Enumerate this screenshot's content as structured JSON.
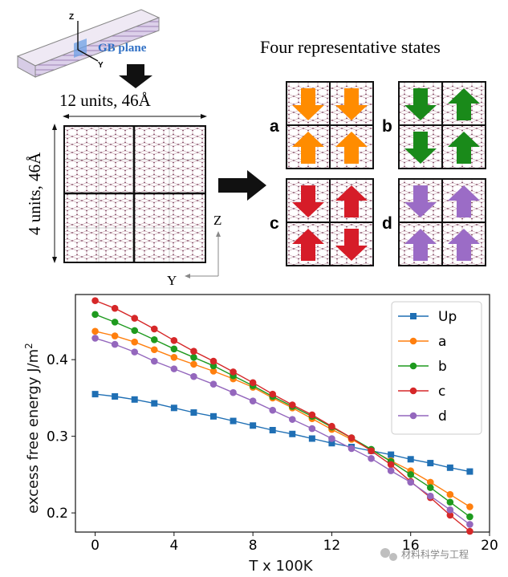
{
  "schematic": {
    "axis_z": "Z",
    "axis_y": "Y",
    "gb_plane_label": "GB plane",
    "width_label": "12 units, 46Å",
    "height_label": "4 units, 46Å",
    "cell_axis_z": "Z",
    "cell_axis_y": "Y",
    "states_title": "Four representative states",
    "states": [
      {
        "label": "a",
        "color": "#ff8c00",
        "arrows": [
          "down",
          "down",
          "up",
          "up"
        ]
      },
      {
        "label": "b",
        "color": "#1a8a1a",
        "arrows": [
          "down",
          "up",
          "down",
          "up"
        ]
      },
      {
        "label": "c",
        "color": "#d61c28",
        "arrows": [
          "down",
          "up",
          "up",
          "down"
        ]
      },
      {
        "label": "d",
        "color": "#9b6cc6",
        "arrows": [
          "down",
          "up",
          "up",
          "up"
        ]
      }
    ]
  },
  "chart_data": {
    "type": "line",
    "xlabel": "T x 100K",
    "ylabel_prefix": "excess free energy J/m",
    "ylabel_sup": "2",
    "xlim": [
      -1,
      20
    ],
    "ylim": [
      0.175,
      0.485
    ],
    "xticks": [
      0,
      4,
      8,
      12,
      16,
      20
    ],
    "yticks": [
      0.2,
      0.3,
      0.4
    ],
    "legend_position": "top-right",
    "series": [
      {
        "name": "Up",
        "color": "#1f6fb4",
        "marker": "square",
        "x": [
          0,
          1,
          2,
          3,
          4,
          5,
          6,
          7,
          8,
          9,
          10,
          11,
          12,
          13,
          14,
          15,
          16,
          17,
          18,
          19
        ],
        "values": [
          0.355,
          0.352,
          0.348,
          0.343,
          0.337,
          0.331,
          0.326,
          0.32,
          0.314,
          0.308,
          0.303,
          0.297,
          0.291,
          0.286,
          0.281,
          0.276,
          0.27,
          0.265,
          0.259,
          0.254
        ]
      },
      {
        "name": "a",
        "color": "#ff7f0e",
        "marker": "circle",
        "x": [
          0,
          1,
          2,
          3,
          4,
          5,
          6,
          7,
          8,
          9,
          10,
          11,
          12,
          13,
          14,
          15,
          16,
          17,
          18,
          19
        ],
        "values": [
          0.437,
          0.431,
          0.423,
          0.413,
          0.403,
          0.394,
          0.385,
          0.375,
          0.364,
          0.35,
          0.337,
          0.323,
          0.309,
          0.296,
          0.282,
          0.268,
          0.255,
          0.24,
          0.224,
          0.208
        ]
      },
      {
        "name": "b",
        "color": "#1e9a1e",
        "marker": "circle",
        "x": [
          0,
          1,
          2,
          3,
          4,
          5,
          6,
          7,
          8,
          9,
          10,
          11,
          12,
          13,
          14,
          15,
          16,
          17,
          18,
          19
        ],
        "values": [
          0.459,
          0.449,
          0.438,
          0.426,
          0.414,
          0.403,
          0.392,
          0.379,
          0.366,
          0.352,
          0.339,
          0.326,
          0.312,
          0.298,
          0.283,
          0.267,
          0.25,
          0.233,
          0.214,
          0.195
        ]
      },
      {
        "name": "c",
        "color": "#d62728",
        "marker": "circle",
        "x": [
          0,
          1,
          2,
          3,
          4,
          5,
          6,
          7,
          8,
          9,
          10,
          11,
          12,
          13,
          14,
          15,
          16,
          17,
          18,
          19
        ],
        "values": [
          0.477,
          0.467,
          0.454,
          0.44,
          0.425,
          0.411,
          0.398,
          0.384,
          0.37,
          0.355,
          0.341,
          0.328,
          0.313,
          0.298,
          0.281,
          0.263,
          0.241,
          0.22,
          0.197,
          0.176
        ]
      },
      {
        "name": "d",
        "color": "#9467bd",
        "marker": "circle",
        "x": [
          0,
          1,
          2,
          3,
          4,
          5,
          6,
          7,
          8,
          9,
          10,
          11,
          12,
          13,
          14,
          15,
          16,
          17,
          18,
          19
        ],
        "values": [
          0.428,
          0.42,
          0.41,
          0.398,
          0.388,
          0.378,
          0.368,
          0.357,
          0.346,
          0.334,
          0.322,
          0.31,
          0.297,
          0.284,
          0.271,
          0.255,
          0.24,
          0.222,
          0.204,
          0.185
        ]
      }
    ]
  },
  "watermark": "材料科学与工程"
}
